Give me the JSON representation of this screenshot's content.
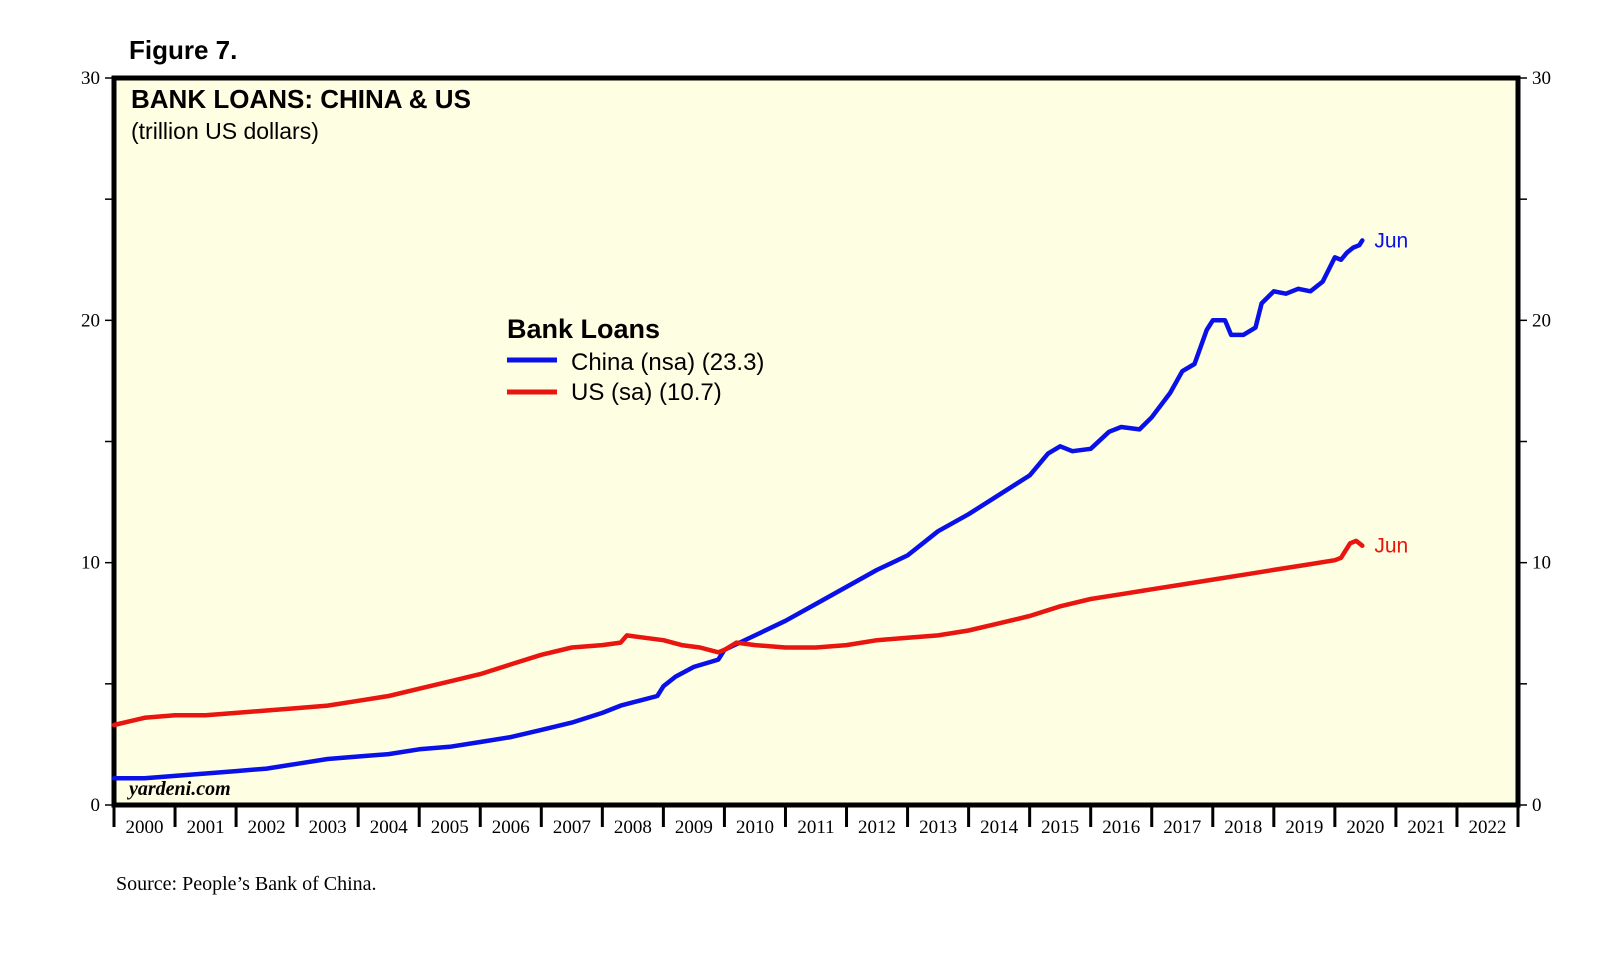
{
  "figure_label": "Figure 7.",
  "source": "Source: People’s Bank of China.",
  "watermark": "yardeni.com",
  "colors": {
    "plot_background": "#fefee3",
    "china": "#0a10e8",
    "us": "#e8160f",
    "frame": "#000000"
  },
  "chart_data": {
    "type": "line",
    "title": "BANK LOANS: CHINA & US",
    "subtitle": "(trillion US dollars)",
    "legend_title": "Bank Loans",
    "legend_position": "center-left",
    "ylim": [
      0,
      30
    ],
    "y_ticks_major": [
      0,
      10,
      20,
      30
    ],
    "y_tick_labels": [
      "0",
      "10",
      "20",
      "30"
    ],
    "x_categories": [
      "2000",
      "2001",
      "2002",
      "2003",
      "2004",
      "2005",
      "2006",
      "2007",
      "2008",
      "2009",
      "2010",
      "2011",
      "2012",
      "2013",
      "2014",
      "2015",
      "2016",
      "2017",
      "2018",
      "2019",
      "2020",
      "2021",
      "2022"
    ],
    "grid": false,
    "series": [
      {
        "name": "China (nsa) (23.3)",
        "color": "#0a10e8",
        "end_label": "Jun",
        "x": [
          2000.0,
          2000.5,
          2001.0,
          2001.5,
          2002.0,
          2002.5,
          2003.0,
          2003.5,
          2004.0,
          2004.5,
          2005.0,
          2005.5,
          2006.0,
          2006.5,
          2007.0,
          2007.5,
          2008.0,
          2008.3,
          2008.6,
          2008.9,
          2009.0,
          2009.2,
          2009.5,
          2009.9,
          2010.0,
          2010.5,
          2011.0,
          2011.5,
          2012.0,
          2012.5,
          2013.0,
          2013.5,
          2014.0,
          2014.5,
          2015.0,
          2015.3,
          2015.5,
          2015.7,
          2016.0,
          2016.3,
          2016.5,
          2016.8,
          2017.0,
          2017.3,
          2017.5,
          2017.7,
          2017.9,
          2018.0,
          2018.2,
          2018.3,
          2018.5,
          2018.7,
          2018.8,
          2019.0,
          2019.2,
          2019.4,
          2019.6,
          2019.8,
          2020.0,
          2020.1,
          2020.2,
          2020.3,
          2020.4,
          2020.45
        ],
        "values": [
          1.1,
          1.1,
          1.2,
          1.3,
          1.4,
          1.5,
          1.7,
          1.9,
          2.0,
          2.1,
          2.3,
          2.4,
          2.6,
          2.8,
          3.1,
          3.4,
          3.8,
          4.1,
          4.3,
          4.5,
          4.9,
          5.3,
          5.7,
          6.0,
          6.4,
          7.0,
          7.6,
          8.3,
          9.0,
          9.7,
          10.3,
          11.3,
          12.0,
          12.8,
          13.6,
          14.5,
          14.8,
          14.6,
          14.7,
          15.4,
          15.6,
          15.5,
          16.0,
          17.0,
          17.9,
          18.2,
          19.6,
          20.0,
          20.0,
          19.4,
          19.4,
          19.7,
          20.7,
          21.2,
          21.1,
          21.3,
          21.2,
          21.6,
          22.6,
          22.5,
          22.8,
          23.0,
          23.1,
          23.3
        ]
      },
      {
        "name": "US (sa) (10.7)",
        "color": "#e8160f",
        "end_label": "Jun",
        "x": [
          2000.0,
          2000.5,
          2001.0,
          2001.5,
          2002.0,
          2002.5,
          2003.0,
          2003.5,
          2004.0,
          2004.5,
          2005.0,
          2005.5,
          2006.0,
          2006.5,
          2007.0,
          2007.5,
          2008.0,
          2008.3,
          2008.4,
          2008.7,
          2009.0,
          2009.3,
          2009.6,
          2009.9,
          2010.0,
          2010.2,
          2010.5,
          2011.0,
          2011.5,
          2012.0,
          2012.5,
          2013.0,
          2013.5,
          2014.0,
          2014.5,
          2015.0,
          2015.5,
          2016.0,
          2016.5,
          2017.0,
          2017.5,
          2018.0,
          2018.5,
          2019.0,
          2019.5,
          2020.0,
          2020.1,
          2020.25,
          2020.35,
          2020.45
        ],
        "values": [
          3.3,
          3.6,
          3.7,
          3.7,
          3.8,
          3.9,
          4.0,
          4.1,
          4.3,
          4.5,
          4.8,
          5.1,
          5.4,
          5.8,
          6.2,
          6.5,
          6.6,
          6.7,
          7.0,
          6.9,
          6.8,
          6.6,
          6.5,
          6.3,
          6.4,
          6.7,
          6.6,
          6.5,
          6.5,
          6.6,
          6.8,
          6.9,
          7.0,
          7.2,
          7.5,
          7.8,
          8.2,
          8.5,
          8.7,
          8.9,
          9.1,
          9.3,
          9.5,
          9.7,
          9.9,
          10.1,
          10.2,
          10.8,
          10.9,
          10.7
        ]
      }
    ]
  }
}
